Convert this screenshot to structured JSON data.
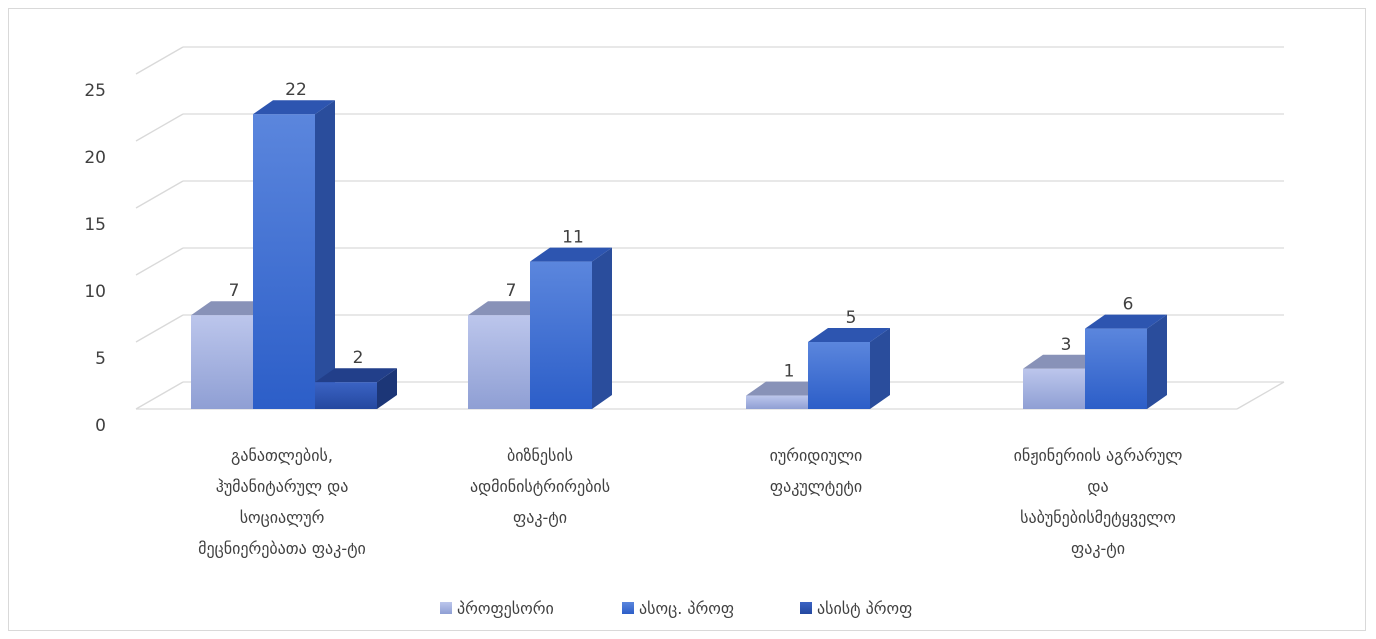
{
  "chart_data": {
    "type": "bar",
    "style": "3d-clustered-column",
    "categories": [
      [
        "განათლების,",
        "ჰუმანიტარულ და",
        "სოციალურ",
        "მეცნიერებათა ფაკ-ტი"
      ],
      [
        "ბიზნესის",
        "ადმინისტრირების",
        "ფაკ-ტი"
      ],
      [
        "იურიდიული",
        "ფაკულტეტი"
      ],
      [
        "ინჟინერიის აგრარულ",
        "და",
        "საბუნებისმეტყველო",
        "ფაკ-ტი"
      ]
    ],
    "series": [
      {
        "name": "პროფესორი",
        "values": [
          7,
          7,
          1,
          3
        ],
        "color": "#a9b6e3"
      },
      {
        "name": "ასოც. პროფ",
        "values": [
          22,
          11,
          5,
          6
        ],
        "color": "#3a6fd6"
      },
      {
        "name": "ასისტ პროფ",
        "values": [
          2,
          null,
          null,
          null
        ],
        "color": "#2f55b3"
      }
    ],
    "ylim": [
      0,
      25
    ],
    "yticks": [
      0,
      5,
      10,
      15,
      20,
      25
    ],
    "grid": true,
    "legend": "bottom"
  }
}
